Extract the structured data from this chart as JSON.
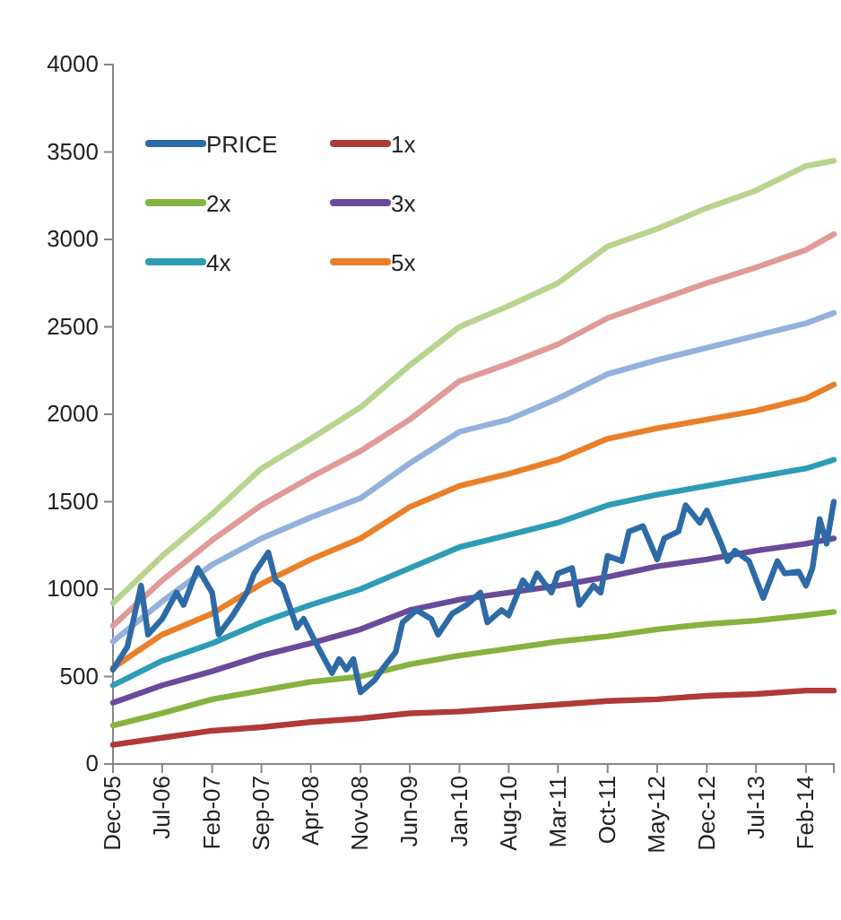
{
  "chart_data": {
    "type": "line",
    "legend": "top left",
    "grid": false,
    "marker": "none",
    "line_style": "solid",
    "xlim": [
      "2005-12",
      "2014-06"
    ],
    "ylim": [
      0,
      4000
    ],
    "xticks": [
      {
        "value": "2005-12",
        "label": "Dec-05"
      },
      {
        "value": "2006-07",
        "label": "Jul-06"
      },
      {
        "value": "2007-02",
        "label": "Feb-07"
      },
      {
        "value": "2007-09",
        "label": "Sep-07"
      },
      {
        "value": "2008-04",
        "label": "Apr-08"
      },
      {
        "value": "2008-11",
        "label": "Nov-08"
      },
      {
        "value": "2009-06",
        "label": "Jun-09"
      },
      {
        "value": "2010-01",
        "label": "Jan-10"
      },
      {
        "value": "2010-08",
        "label": "Aug-10"
      },
      {
        "value": "2011-03",
        "label": "Mar-11"
      },
      {
        "value": "2011-10",
        "label": "Oct-11"
      },
      {
        "value": "2012-05",
        "label": "May-12"
      },
      {
        "value": "2012-12",
        "label": "Dec-12"
      },
      {
        "value": "2013-07",
        "label": "Jul-13"
      },
      {
        "value": "2014-02",
        "label": "Feb-14"
      }
    ],
    "yticks": [
      0,
      500,
      1000,
      1500,
      2000,
      2500,
      3000,
      3500,
      4000
    ],
    "x": [
      "2005-12",
      "2006-07",
      "2007-02",
      "2007-09",
      "2008-04",
      "2008-11",
      "2009-06",
      "2010-01",
      "2010-08",
      "2011-03",
      "2011-10",
      "2012-05",
      "2012-12",
      "2013-07",
      "2014-02",
      "2014-06"
    ],
    "series": [
      {
        "name": "PRICE",
        "color": "#2e6aa6",
        "x": [
          "2005-12",
          "2006-02",
          "2006-04",
          "2006-05",
          "2006-07",
          "2006-09",
          "2006-10",
          "2006-12",
          "2007-02",
          "2007-03",
          "2007-05",
          "2007-07",
          "2007-08",
          "2007-10",
          "2007-11",
          "2007-12",
          "2008-02",
          "2008-03",
          "2008-05",
          "2008-07",
          "2008-08",
          "2008-09",
          "2008-10",
          "2008-11",
          "2009-01",
          "2009-02",
          "2009-04",
          "2009-05",
          "2009-07",
          "2009-09",
          "2009-10",
          "2009-12",
          "2010-02",
          "2010-04",
          "2010-05",
          "2010-07",
          "2010-08",
          "2010-10",
          "2010-11",
          "2010-12",
          "2011-02",
          "2011-03",
          "2011-05",
          "2011-06",
          "2011-08",
          "2011-09",
          "2011-10",
          "2011-12",
          "2012-01",
          "2012-03",
          "2012-05",
          "2012-06",
          "2012-08",
          "2012-09",
          "2012-11",
          "2012-12",
          "2013-02",
          "2013-03",
          "2013-04",
          "2013-06",
          "2013-08",
          "2013-10",
          "2013-11",
          "2014-01",
          "2014-02",
          "2014-03",
          "2014-04",
          "2014-05",
          "2014-06"
        ],
        "values": [
          540,
          670,
          1020,
          740,
          830,
          980,
          910,
          1120,
          980,
          740,
          850,
          980,
          1090,
          1210,
          1050,
          1020,
          780,
          830,
          670,
          520,
          600,
          540,
          600,
          410,
          480,
          540,
          640,
          810,
          880,
          830,
          740,
          860,
          910,
          980,
          810,
          880,
          850,
          1050,
          1000,
          1090,
          980,
          1090,
          1120,
          910,
          1020,
          980,
          1190,
          1160,
          1330,
          1360,
          1170,
          1290,
          1330,
          1480,
          1380,
          1450,
          1260,
          1160,
          1220,
          1160,
          950,
          1160,
          1090,
          1100,
          1020,
          1120,
          1400,
          1260,
          1500
        ]
      },
      {
        "name": "1x",
        "color": "#b03a35",
        "values": [
          110,
          150,
          190,
          210,
          240,
          260,
          290,
          300,
          320,
          340,
          360,
          370,
          390,
          400,
          420,
          420
        ]
      },
      {
        "name": "2x",
        "color": "#86b23e",
        "values": [
          220,
          290,
          370,
          420,
          470,
          500,
          570,
          620,
          660,
          700,
          730,
          770,
          800,
          820,
          850,
          870
        ]
      },
      {
        "name": "3x",
        "color": "#6a4a9a",
        "values": [
          350,
          450,
          530,
          620,
          690,
          770,
          880,
          940,
          980,
          1020,
          1070,
          1130,
          1170,
          1220,
          1260,
          1290
        ]
      },
      {
        "name": "4x",
        "color": "#2f9cb6",
        "values": [
          450,
          590,
          690,
          810,
          910,
          1000,
          1120,
          1240,
          1310,
          1380,
          1480,
          1540,
          1590,
          1640,
          1690,
          1740
        ]
      },
      {
        "name": "5x",
        "color": "#e98029",
        "values": [
          550,
          740,
          860,
          1030,
          1170,
          1290,
          1470,
          1590,
          1660,
          1740,
          1860,
          1920,
          1970,
          2020,
          2090,
          2170
        ]
      },
      {
        "color": "#94b1de",
        "values": [
          700,
          930,
          1140,
          1290,
          1410,
          1520,
          1720,
          1900,
          1970,
          2090,
          2230,
          2310,
          2380,
          2450,
          2520,
          2580
        ]
      },
      {
        "color": "#e09a98",
        "values": [
          790,
          1050,
          1280,
          1480,
          1640,
          1790,
          1970,
          2190,
          2290,
          2400,
          2550,
          2650,
          2750,
          2840,
          2940,
          3030
        ]
      },
      {
        "color": "#b7d48e",
        "values": [
          920,
          1190,
          1430,
          1690,
          1860,
          2040,
          2280,
          2500,
          2620,
          2750,
          2960,
          3060,
          3180,
          3280,
          3420,
          3450
        ]
      }
    ]
  }
}
